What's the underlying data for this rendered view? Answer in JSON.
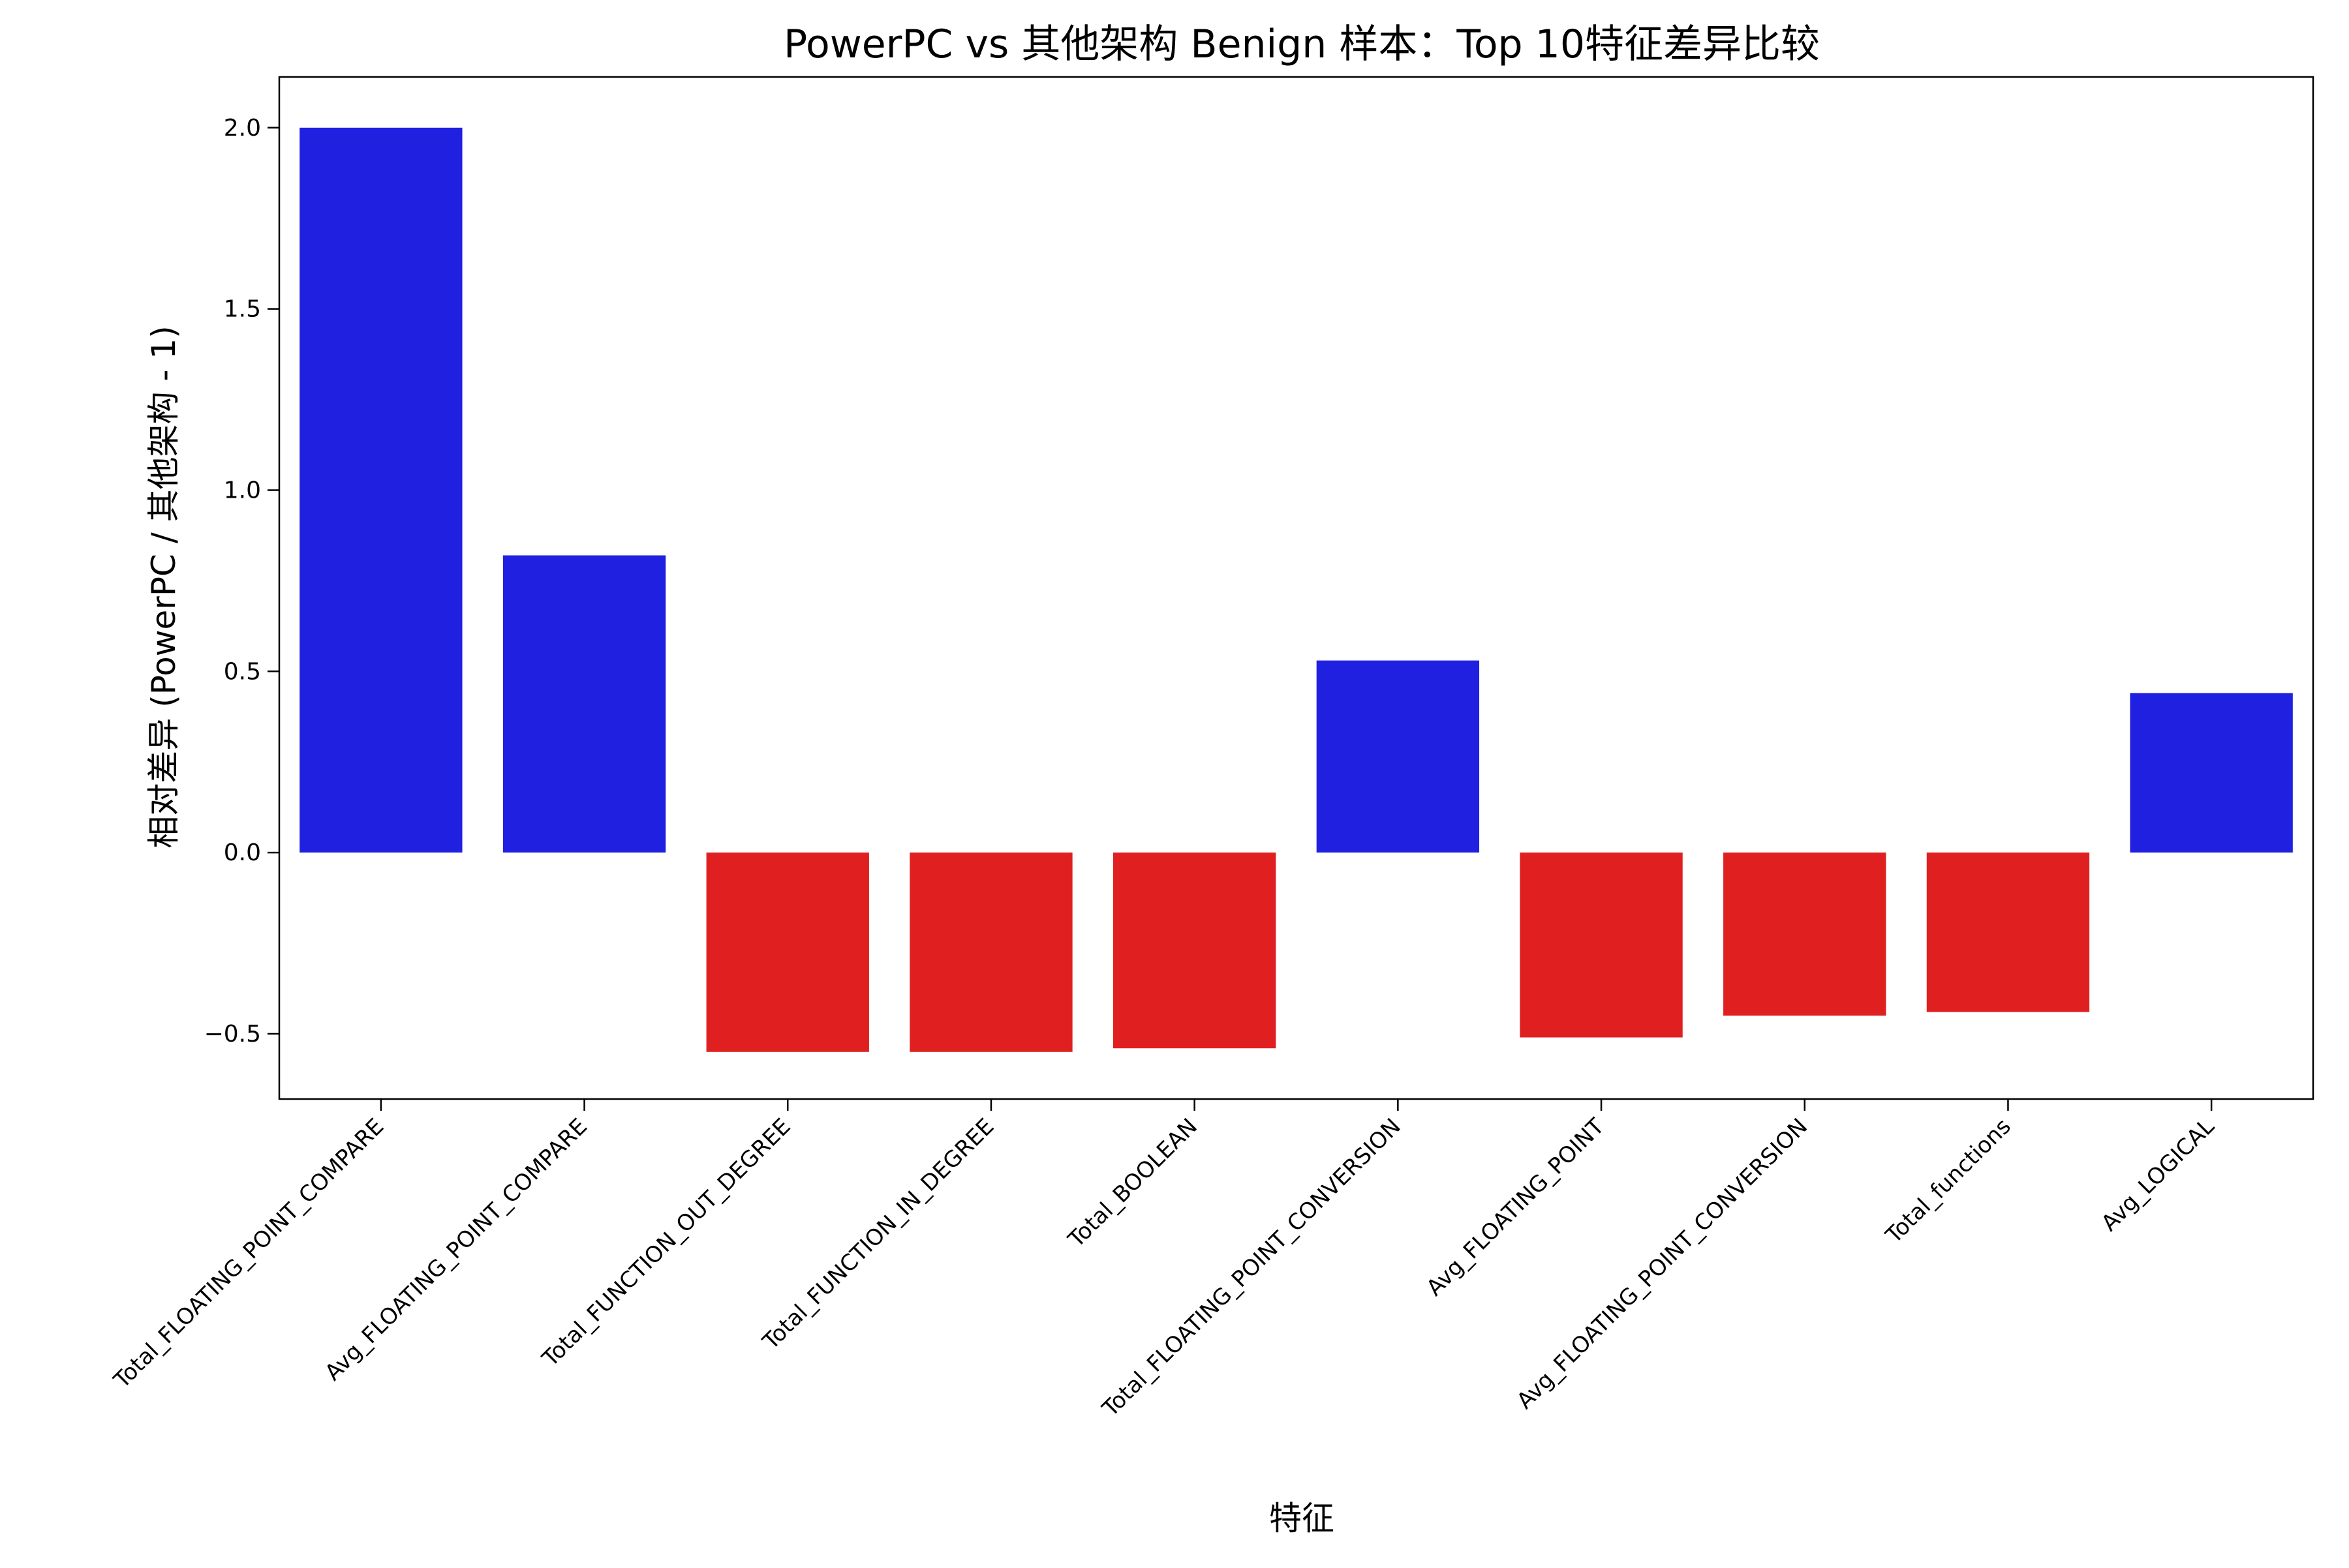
{
  "chart_data": {
    "type": "bar",
    "title": "PowerPC vs 其他架构 Benign 样本：Top 10特征差异比较",
    "xlabel": "特征",
    "ylabel": "相对差异 (PowerPC / 其他架构 - 1)",
    "categories": [
      "Total_FLOATING_POINT_COMPARE",
      "Avg_FLOATING_POINT_COMPARE",
      "Total_FUNCTION_OUT_DEGREE",
      "Total_FUNCTION_IN_DEGREE",
      "Total_BOOLEAN",
      "Total_FLOATING_POINT_CONVERSION",
      "Avg_FLOATING_POINT",
      "Avg_FLOATING_POINT_CONVERSION",
      "Total_functions",
      "Avg_LOGICAL"
    ],
    "values": [
      2.0,
      0.82,
      -0.55,
      -0.55,
      -0.54,
      0.53,
      -0.51,
      -0.45,
      -0.44,
      0.44
    ],
    "ylim": [
      -0.68,
      2.14
    ],
    "yticks": [
      -0.5,
      0.0,
      0.5,
      1.0,
      1.5,
      2.0
    ],
    "ytick_labels": [
      "−0.5",
      "0.0",
      "0.5",
      "1.0",
      "1.5",
      "2.0"
    ],
    "grid": false,
    "colors": {
      "positive": "#2020e0",
      "negative": "#e02020",
      "axis": "#000000",
      "background": "#ffffff"
    }
  }
}
